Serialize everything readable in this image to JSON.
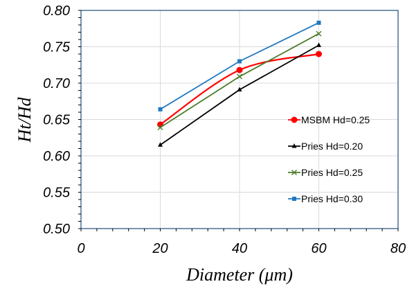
{
  "chart_data": {
    "type": "line",
    "xlabel": "Diameter (μm)",
    "ylabel": "Ht/Hd",
    "xlim": [
      0,
      80
    ],
    "ylim": [
      0.5,
      0.8
    ],
    "xticks": [
      "0",
      "20",
      "40",
      "60",
      "80"
    ],
    "yticks": [
      "0.50",
      "0.55",
      "0.60",
      "0.65",
      "0.70",
      "0.75",
      "0.80"
    ],
    "grid": true,
    "legend_position": "right",
    "series": [
      {
        "name": "MSBM Hd=0.25",
        "color": "#ff0000",
        "marker": "circle",
        "smooth": true,
        "x": [
          20,
          40,
          60
        ],
        "y": [
          0.643,
          0.718,
          0.74
        ]
      },
      {
        "name": "Pries Hd=0.20",
        "color": "#000000",
        "marker": "triangle",
        "smooth": false,
        "x": [
          20,
          40,
          60
        ],
        "y": [
          0.615,
          0.691,
          0.752
        ]
      },
      {
        "name": "Pries Hd=0.25",
        "color": "#4a7c2a",
        "marker": "x",
        "smooth": false,
        "x": [
          20,
          40,
          60
        ],
        "y": [
          0.639,
          0.709,
          0.768
        ]
      },
      {
        "name": "Pries Hd=0.30",
        "color": "#1f78c1",
        "marker": "square",
        "smooth": false,
        "x": [
          20,
          40,
          60
        ],
        "y": [
          0.664,
          0.73,
          0.783
        ]
      }
    ]
  }
}
